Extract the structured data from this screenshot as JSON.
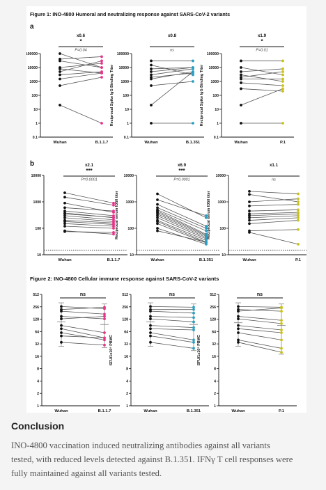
{
  "figure": {
    "fig1_title": "Figure 1: INO-4800 Humoral and neutralizing response against SARS-CoV-2 variants",
    "fig2_title": "Figure 2: INO-4800 Cellular immune response against SARS-CoV-2 variants",
    "panel_a_label": "a",
    "panel_b_label": "b"
  },
  "colors": {
    "wuhan": "#111111",
    "B.1.1.7": "#e8338a",
    "B.1.351": "#2a9fc2",
    "P.1": "#c9c21a",
    "line": "#555555",
    "dotted_reference": "#333333"
  },
  "chart_data": [
    {
      "id": "a1",
      "panel": "a",
      "type": "scatter",
      "ylabel": "Reciprocal Spike IgG Binding Titer",
      "scale": "log",
      "ylim": [
        0.1,
        100000
      ],
      "yticks": [
        0.1,
        1,
        10,
        100,
        1000,
        10000,
        100000
      ],
      "ytick_labels": [
        "0.1",
        "1",
        "10",
        "100",
        "1000",
        "10000",
        "100000"
      ],
      "categories": [
        "Wuhan",
        "B.1.1.7"
      ],
      "variant": "B.1.1.7",
      "fold": "x0.6",
      "stars": "*",
      "pvalue": "P=0.04",
      "pairs": [
        [
          100000,
          10000
        ],
        [
          40000,
          60000
        ],
        [
          30000,
          10000
        ],
        [
          10000,
          20000
        ],
        [
          8000,
          4000
        ],
        [
          5000,
          30000
        ],
        [
          3000,
          5000
        ],
        [
          1500,
          4000
        ],
        [
          500,
          2000
        ],
        [
          20,
          1
        ]
      ]
    },
    {
      "id": "a2",
      "panel": "a",
      "type": "scatter",
      "ylabel": "Reciprocal Spike IgG Binding Titer",
      "scale": "log",
      "ylim": [
        0.1,
        100000
      ],
      "yticks": [
        0.1,
        1,
        10,
        100,
        1000,
        10000,
        100000
      ],
      "ytick_labels": [
        "0.1",
        "1",
        "10",
        "100",
        "1000",
        "10000",
        "100000"
      ],
      "categories": [
        "Wuhan",
        "B.1.351"
      ],
      "variant": "B.1.351",
      "fold": "x0.8",
      "stars": "",
      "pvalue": "ns",
      "pairs": [
        [
          30000,
          30000
        ],
        [
          15000,
          3000
        ],
        [
          8000,
          10000
        ],
        [
          5000,
          10000
        ],
        [
          3000,
          8000
        ],
        [
          2000,
          4000
        ],
        [
          1500,
          5000
        ],
        [
          500,
          1000
        ],
        [
          20,
          5000
        ],
        [
          1,
          1
        ]
      ]
    },
    {
      "id": "a3",
      "panel": "a",
      "type": "scatter",
      "ylabel": "Reciprocal Spike IgG Binding Titer",
      "scale": "log",
      "ylim": [
        0.1,
        100000
      ],
      "yticks": [
        0.1,
        1,
        10,
        100,
        1000,
        10000,
        100000
      ],
      "ytick_labels": [
        "0.1",
        "1",
        "10",
        "100",
        "1000",
        "10000",
        "100000"
      ],
      "categories": [
        "Wuhan",
        "P.1"
      ],
      "variant": "P.1",
      "fold": "x1.9",
      "stars": "*",
      "pvalue": "P=0.01",
      "pairs": [
        [
          30000,
          30000
        ],
        [
          10000,
          3000
        ],
        [
          5000,
          8000
        ],
        [
          3000,
          1000
        ],
        [
          2000,
          5000
        ],
        [
          1500,
          1500
        ],
        [
          800,
          500
        ],
        [
          300,
          200
        ],
        [
          20,
          300
        ],
        [
          1,
          1
        ]
      ]
    },
    {
      "id": "b1",
      "panel": "b",
      "type": "scatter",
      "ylabel": "Reciprocal serum ID50 titer",
      "scale": "log",
      "ylim": [
        10,
        10000
      ],
      "reference_line": 15,
      "yticks": [
        10,
        100,
        1000,
        10000
      ],
      "ytick_labels": [
        "10",
        "100",
        "1000",
        "10000"
      ],
      "categories": [
        "Wuhan",
        "B.1.1.7"
      ],
      "variant": "B.1.1.7",
      "fold": "x2.1",
      "stars": "***",
      "pvalue": "P=0.0001",
      "pairs": [
        [
          2200,
          900
        ],
        [
          1500,
          750
        ],
        [
          900,
          400
        ],
        [
          600,
          450
        ],
        [
          450,
          300
        ],
        [
          380,
          250
        ],
        [
          350,
          260
        ],
        [
          300,
          210
        ],
        [
          250,
          180
        ],
        [
          200,
          160
        ],
        [
          180,
          140
        ],
        [
          150,
          120
        ],
        [
          120,
          100
        ],
        [
          80,
          60
        ],
        [
          75,
          70
        ]
      ]
    },
    {
      "id": "b2",
      "panel": "b",
      "type": "scatter",
      "ylabel": "Reciprocal serum ID50 titer",
      "scale": "log",
      "ylim": [
        10,
        10000
      ],
      "reference_line": 15,
      "yticks": [
        10,
        100,
        1000,
        10000
      ],
      "ytick_labels": [
        "10",
        "100",
        "1000",
        "10000"
      ],
      "categories": [
        "Wuhan",
        "B.1.351"
      ],
      "variant": "B.1.351",
      "fold": "x6.9",
      "stars": "***",
      "pvalue": "P=0.0001",
      "pairs": [
        [
          2000,
          250
        ],
        [
          1200,
          300
        ],
        [
          800,
          120
        ],
        [
          600,
          100
        ],
        [
          500,
          80
        ],
        [
          450,
          60
        ],
        [
          400,
          55
        ],
        [
          350,
          50
        ],
        [
          300,
          45
        ],
        [
          250,
          40
        ],
        [
          200,
          35
        ],
        [
          180,
          30
        ],
        [
          150,
          28
        ],
        [
          100,
          25
        ],
        [
          80,
          30
        ]
      ]
    },
    {
      "id": "b3",
      "panel": "b",
      "type": "scatter",
      "ylabel": "Reciprocal serum ID50 titer",
      "scale": "log",
      "ylim": [
        10,
        10000
      ],
      "reference_line": 15,
      "yticks": [
        10,
        100,
        1000,
        10000
      ],
      "ytick_labels": [
        "10",
        "100",
        "1000",
        "10000"
      ],
      "categories": [
        "Wuhan",
        "P.1"
      ],
      "variant": "P.1",
      "fold": "x1.1",
      "stars": "",
      "pvalue": "ns",
      "pairs": [
        [
          2500,
          2000
        ],
        [
          1900,
          1000
        ],
        [
          1000,
          1300
        ],
        [
          700,
          800
        ],
        [
          450,
          500
        ],
        [
          350,
          400
        ],
        [
          300,
          350
        ],
        [
          250,
          300
        ],
        [
          200,
          250
        ],
        [
          150,
          200
        ],
        [
          80,
          90
        ],
        [
          70,
          25
        ]
      ]
    },
    {
      "id": "c1",
      "panel": "fig2",
      "type": "scatter",
      "ylabel": "SFU/1x10⁶ PBMC",
      "scale": "log2",
      "ylim": [
        1,
        512
      ],
      "yticks": [
        1,
        2,
        4,
        8,
        16,
        32,
        64,
        128,
        256,
        512
      ],
      "ytick_labels": [
        "1",
        "2",
        "4",
        "8",
        "16",
        "32",
        "64",
        "128",
        "256",
        "512"
      ],
      "categories": [
        "Wuhan",
        "B.1.1.7"
      ],
      "variant": "B.1.1.7",
      "stars": "",
      "pvalue": "ns",
      "pairs": [
        [
          260,
          230
        ],
        [
          220,
          250
        ],
        [
          200,
          170
        ],
        [
          150,
          130
        ],
        [
          130,
          150
        ],
        [
          90,
          60
        ],
        [
          75,
          45
        ],
        [
          60,
          40
        ],
        [
          50,
          45
        ],
        [
          35,
          30
        ]
      ],
      "mean": [
        110,
        95
      ],
      "err_low": [
        28,
        26
      ],
      "err_high": [
        320,
        300
      ]
    },
    {
      "id": "c2",
      "panel": "fig2",
      "type": "scatter",
      "ylabel": "SFU/1x10⁶ PBMC",
      "scale": "log2",
      "ylim": [
        1,
        512
      ],
      "yticks": [
        1,
        2,
        4,
        8,
        16,
        32,
        64,
        128,
        256,
        512
      ],
      "ytick_labels": [
        "1",
        "2",
        "4",
        "8",
        "16",
        "32",
        "64",
        "128",
        "256",
        "512"
      ],
      "categories": [
        "Wuhan",
        "B.1.351"
      ],
      "variant": "B.1.351",
      "stars": "",
      "pvalue": "ns",
      "pairs": [
        [
          260,
          250
        ],
        [
          220,
          220
        ],
        [
          200,
          180
        ],
        [
          150,
          140
        ],
        [
          130,
          110
        ],
        [
          90,
          80
        ],
        [
          75,
          70
        ],
        [
          60,
          40
        ],
        [
          50,
          35
        ],
        [
          35,
          25
        ]
      ],
      "mean": [
        110,
        95
      ],
      "err_low": [
        28,
        22
      ],
      "err_high": [
        320,
        300
      ]
    },
    {
      "id": "c3",
      "panel": "fig2",
      "type": "scatter",
      "ylabel": "SFU/1x10⁶ PBMC",
      "scale": "log2",
      "ylim": [
        1,
        512
      ],
      "yticks": [
        1,
        2,
        4,
        8,
        16,
        32,
        64,
        128,
        256,
        512
      ],
      "ytick_labels": [
        "1",
        "2",
        "4",
        "8",
        "16",
        "32",
        "64",
        "128",
        "256",
        "512"
      ],
      "categories": [
        "Wuhan",
        "P.1"
      ],
      "variant": "P.1",
      "stars": "",
      "pvalue": "ns",
      "pairs": [
        [
          260,
          250
        ],
        [
          220,
          200
        ],
        [
          200,
          240
        ],
        [
          150,
          120
        ],
        [
          130,
          100
        ],
        [
          90,
          70
        ],
        [
          75,
          60
        ],
        [
          60,
          40
        ],
        [
          40,
          25
        ],
        [
          35,
          20
        ]
      ],
      "mean": [
        105,
        90
      ],
      "err_low": [
        28,
        18
      ],
      "err_high": [
        320,
        300
      ]
    }
  ],
  "conclusion": {
    "title": "Conclusion",
    "line1": "INO-4800 vaccination induced neutralizing antibodies against all variants",
    "line2": "tested, with reduced levels detected against B.1.351. IFNγ T cell responses were",
    "line3": "fully maintained against all variants tested."
  }
}
